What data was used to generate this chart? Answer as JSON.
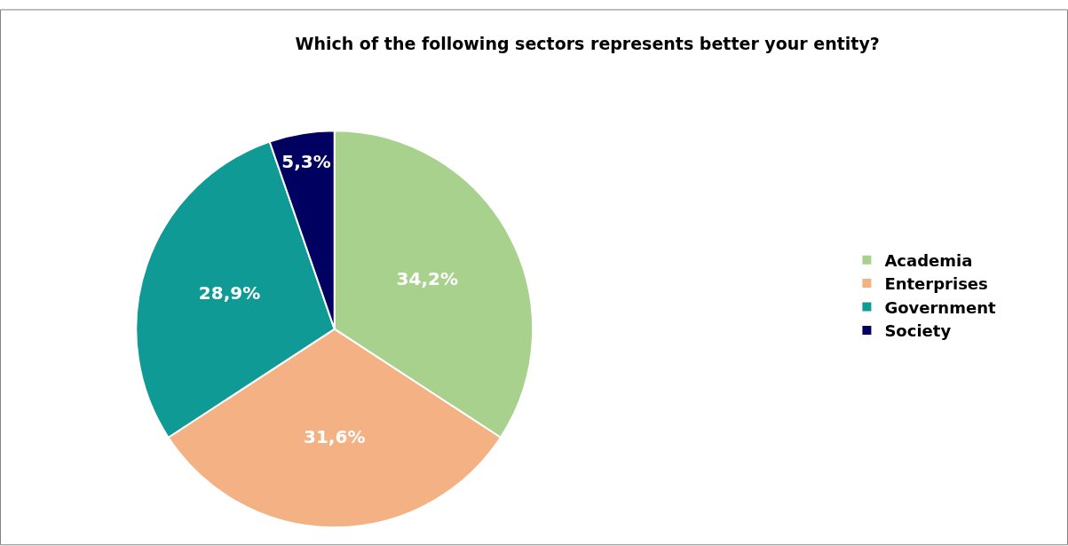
{
  "chart_data": {
    "type": "pie",
    "title": "Which of the following sectors represents better your entity?",
    "categories": [
      "Academia",
      "Enterprises",
      "Government",
      "Society"
    ],
    "values": [
      34.2,
      31.6,
      28.9,
      5.3
    ],
    "value_labels": [
      "34,2%",
      "31,6%",
      "28,9%",
      "5,3%"
    ],
    "colors": [
      "#a9d18e",
      "#f4b183",
      "#0f9a96",
      "#000060"
    ],
    "legend": "right"
  }
}
